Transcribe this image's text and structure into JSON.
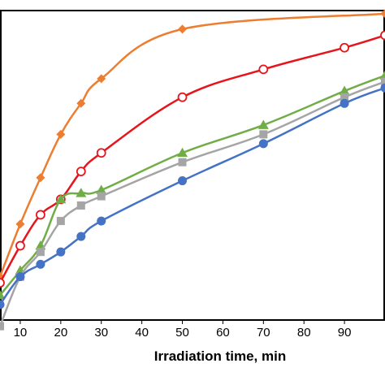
{
  "chart_data": {
    "type": "line",
    "title": "",
    "xlabel": "Irradiation time, min",
    "ylabel": "",
    "xlim": [
      5,
      100
    ],
    "ylim": [
      0,
      100
    ],
    "x_ticks": [
      10,
      20,
      30,
      40,
      50,
      60,
      70,
      80,
      90
    ],
    "x_tick_labels": [
      "10",
      "20",
      "30",
      "40",
      "50",
      "60",
      "70",
      "80",
      "90"
    ],
    "grid": false,
    "series": [
      {
        "marker": "diamond",
        "color": "#ED7D31",
        "x": [
          5,
          10,
          15,
          20,
          25,
          30,
          50,
          100
        ],
        "y": [
          14,
          31,
          46,
          60,
          70,
          78,
          94,
          99
        ]
      },
      {
        "marker": "circle-open",
        "color": "#E8141B",
        "x": [
          5,
          10,
          15,
          20,
          25,
          30,
          50,
          70,
          90,
          100
        ],
        "y": [
          12,
          24,
          34,
          39,
          48,
          54,
          72,
          81,
          88,
          92
        ]
      },
      {
        "marker": "triangle",
        "color": "#70AD47",
        "x": [
          5,
          10,
          15,
          20,
          25,
          30,
          50,
          70,
          90,
          100
        ],
        "y": [
          8,
          16,
          24,
          39,
          41,
          42,
          54,
          63,
          74,
          79
        ]
      },
      {
        "marker": "square",
        "color": "#A5A5A5",
        "x": [
          5,
          10,
          15,
          20,
          25,
          30,
          50,
          70,
          90,
          100
        ],
        "y": [
          -2,
          14,
          22,
          32,
          37,
          40,
          51,
          60,
          72,
          77
        ]
      },
      {
        "marker": "circle",
        "color": "#4472C4",
        "x": [
          5,
          10,
          15,
          20,
          25,
          30,
          50,
          70,
          90,
          100
        ],
        "y": [
          5,
          14,
          18,
          22,
          27,
          32,
          45,
          57,
          70,
          75
        ]
      }
    ]
  }
}
